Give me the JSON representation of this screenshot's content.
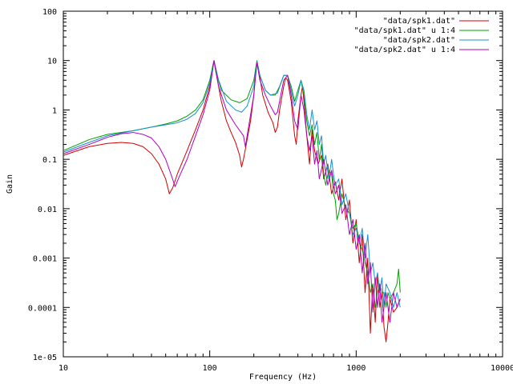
{
  "chart_data": {
    "type": "line",
    "title": "",
    "xlabel": "Frequency (Hz)",
    "ylabel": "Gain",
    "xscale": "log",
    "yscale": "log",
    "xlim": [
      10,
      10000
    ],
    "ylim": [
      1e-05,
      100
    ],
    "x_ticks": [
      {
        "value": 10,
        "label": "10"
      },
      {
        "value": 100,
        "label": "100"
      },
      {
        "value": 1000,
        "label": "1000"
      },
      {
        "value": 10000,
        "label": "10000"
      }
    ],
    "y_ticks": [
      {
        "value": 100,
        "label": "100"
      },
      {
        "value": 10,
        "label": "10"
      },
      {
        "value": 1,
        "label": "1"
      },
      {
        "value": 0.1,
        "label": "0.1"
      },
      {
        "value": 0.01,
        "label": "0.01"
      },
      {
        "value": 0.001,
        "label": "0.001"
      },
      {
        "value": 0.0001,
        "label": "0.0001"
      },
      {
        "value": 1e-05,
        "label": "1e-05"
      }
    ],
    "grid": false,
    "legend_position": "top-right",
    "series": [
      {
        "name": "\"data/spk1.dat\"",
        "color": "#d00000",
        "points": [
          [
            10,
            0.12
          ],
          [
            15,
            0.18
          ],
          [
            20,
            0.21
          ],
          [
            25,
            0.22
          ],
          [
            30,
            0.21
          ],
          [
            35,
            0.18
          ],
          [
            40,
            0.13
          ],
          [
            45,
            0.08
          ],
          [
            50,
            0.04
          ],
          [
            53,
            0.02
          ],
          [
            56,
            0.027
          ],
          [
            60,
            0.05
          ],
          [
            70,
            0.15
          ],
          [
            80,
            0.4
          ],
          [
            90,
            1.0
          ],
          [
            100,
            3.0
          ],
          [
            105,
            8.0
          ],
          [
            107,
            10.0
          ],
          [
            110,
            6.0
          ],
          [
            120,
            1.5
          ],
          [
            130,
            0.6
          ],
          [
            140,
            0.35
          ],
          [
            150,
            0.22
          ],
          [
            160,
            0.12
          ],
          [
            165,
            0.07
          ],
          [
            170,
            0.1
          ],
          [
            180,
            0.25
          ],
          [
            190,
            0.6
          ],
          [
            200,
            2.0
          ],
          [
            205,
            5.0
          ],
          [
            210,
            9.0
          ],
          [
            215,
            7.0
          ],
          [
            230,
            2.0
          ],
          [
            250,
            0.9
          ],
          [
            270,
            0.55
          ],
          [
            280,
            0.35
          ],
          [
            290,
            0.45
          ],
          [
            300,
            1.0
          ],
          [
            320,
            3.0
          ],
          [
            330,
            4.5
          ],
          [
            340,
            4.0
          ],
          [
            360,
            1.5
          ],
          [
            380,
            0.3
          ],
          [
            390,
            0.2
          ],
          [
            400,
            0.6
          ],
          [
            420,
            2.0
          ],
          [
            430,
            3.0
          ],
          [
            445,
            1.0
          ],
          [
            460,
            0.3
          ],
          [
            480,
            0.08
          ],
          [
            500,
            0.4
          ],
          [
            520,
            0.15
          ],
          [
            550,
            0.08
          ],
          [
            580,
            0.12
          ],
          [
            600,
            0.04
          ],
          [
            640,
            0.08
          ],
          [
            680,
            0.02
          ],
          [
            720,
            0.035
          ],
          [
            760,
            0.015
          ],
          [
            800,
            0.04
          ],
          [
            850,
            0.006
          ],
          [
            900,
            0.015
          ],
          [
            950,
            0.002
          ],
          [
            1000,
            0.006
          ],
          [
            1050,
            0.0008
          ],
          [
            1100,
            0.003
          ],
          [
            1150,
            0.0002
          ],
          [
            1200,
            0.001
          ],
          [
            1250,
            3e-05
          ],
          [
            1300,
            0.0003
          ],
          [
            1350,
            5e-05
          ],
          [
            1400,
            0.0005
          ],
          [
            1450,
            0.0001
          ],
          [
            1500,
            0.0002
          ],
          [
            1550,
            4e-05
          ],
          [
            1600,
            2e-05
          ],
          [
            1650,
            5e-05
          ],
          [
            1700,
            0.00015
          ],
          [
            1800,
            8e-05
          ],
          [
            1900,
            0.0001
          ],
          [
            2000,
            0.00015
          ]
        ]
      },
      {
        "name": "\"data/spk1.dat\" u 1:4",
        "color": "#00a000",
        "points": [
          [
            10,
            0.15
          ],
          [
            15,
            0.25
          ],
          [
            20,
            0.32
          ],
          [
            30,
            0.38
          ],
          [
            40,
            0.45
          ],
          [
            50,
            0.52
          ],
          [
            60,
            0.6
          ],
          [
            70,
            0.75
          ],
          [
            80,
            1.0
          ],
          [
            90,
            1.6
          ],
          [
            100,
            4.0
          ],
          [
            105,
            8.0
          ],
          [
            107,
            10.0
          ],
          [
            110,
            6.0
          ],
          [
            120,
            2.5
          ],
          [
            140,
            1.6
          ],
          [
            160,
            1.4
          ],
          [
            180,
            1.7
          ],
          [
            200,
            4.0
          ],
          [
            210,
            10.0
          ],
          [
            220,
            5.0
          ],
          [
            240,
            2.5
          ],
          [
            260,
            2.0
          ],
          [
            280,
            2.0
          ],
          [
            300,
            3.0
          ],
          [
            320,
            5.0
          ],
          [
            340,
            5.0
          ],
          [
            360,
            3.0
          ],
          [
            380,
            1.5
          ],
          [
            400,
            2.5
          ],
          [
            420,
            4.0
          ],
          [
            440,
            2.0
          ],
          [
            460,
            0.6
          ],
          [
            480,
            0.3
          ],
          [
            500,
            0.5
          ],
          [
            520,
            0.2
          ],
          [
            540,
            0.35
          ],
          [
            560,
            0.1
          ],
          [
            580,
            0.2
          ],
          [
            600,
            0.05
          ],
          [
            620,
            0.03
          ],
          [
            650,
            0.06
          ],
          [
            680,
            0.05
          ],
          [
            700,
            0.02
          ],
          [
            720,
            0.015
          ],
          [
            740,
            0.006
          ],
          [
            760,
            0.008
          ],
          [
            800,
            0.02
          ],
          [
            850,
            0.01
          ],
          [
            900,
            0.008
          ],
          [
            950,
            0.004
          ],
          [
            1000,
            0.005
          ],
          [
            1050,
            0.002
          ],
          [
            1100,
            0.0015
          ],
          [
            1150,
            0.0008
          ],
          [
            1200,
            0.0005
          ],
          [
            1250,
            0.0002
          ],
          [
            1300,
            0.0003
          ],
          [
            1350,
            0.0001
          ],
          [
            1400,
            0.0002
          ],
          [
            1450,
            0.0003
          ],
          [
            1500,
            0.0002
          ],
          [
            1550,
            0.0002
          ],
          [
            1600,
            0.0001
          ],
          [
            1650,
            0.0002
          ],
          [
            1700,
            0.00015
          ],
          [
            1800,
            0.0002
          ],
          [
            1900,
            0.0003
          ],
          [
            1950,
            0.0006
          ],
          [
            2000,
            0.0002
          ]
        ]
      },
      {
        "name": "\"data/spk2.dat\"",
        "color": "#1890d0",
        "points": [
          [
            10,
            0.14
          ],
          [
            15,
            0.22
          ],
          [
            20,
            0.3
          ],
          [
            30,
            0.38
          ],
          [
            40,
            0.45
          ],
          [
            50,
            0.5
          ],
          [
            60,
            0.55
          ],
          [
            70,
            0.65
          ],
          [
            80,
            0.85
          ],
          [
            90,
            1.4
          ],
          [
            100,
            3.5
          ],
          [
            107,
            10.0
          ],
          [
            115,
            4.0
          ],
          [
            130,
            1.5
          ],
          [
            150,
            1.0
          ],
          [
            165,
            0.9
          ],
          [
            180,
            1.2
          ],
          [
            200,
            3.0
          ],
          [
            210,
            9.5
          ],
          [
            220,
            5.0
          ],
          [
            240,
            2.5
          ],
          [
            260,
            2.0
          ],
          [
            290,
            2.2
          ],
          [
            320,
            5.0
          ],
          [
            340,
            5.0
          ],
          [
            360,
            2.5
          ],
          [
            380,
            1.2
          ],
          [
            400,
            2.0
          ],
          [
            420,
            4.0
          ],
          [
            440,
            2.5
          ],
          [
            460,
            0.8
          ],
          [
            480,
            0.4
          ],
          [
            500,
            1.0
          ],
          [
            520,
            0.4
          ],
          [
            540,
            0.6
          ],
          [
            560,
            0.2
          ],
          [
            580,
            0.3
          ],
          [
            600,
            0.08
          ],
          [
            620,
            0.12
          ],
          [
            650,
            0.04
          ],
          [
            680,
            0.1
          ],
          [
            700,
            0.05
          ],
          [
            720,
            0.03
          ],
          [
            760,
            0.04
          ],
          [
            800,
            0.012
          ],
          [
            850,
            0.02
          ],
          [
            900,
            0.008
          ],
          [
            950,
            0.003
          ],
          [
            1000,
            0.004
          ],
          [
            1050,
            0.002
          ],
          [
            1100,
            0.004
          ],
          [
            1150,
            0.001
          ],
          [
            1200,
            0.003
          ],
          [
            1250,
            0.0005
          ],
          [
            1300,
            0.0008
          ],
          [
            1350,
            0.0003
          ],
          [
            1400,
            0.0005
          ],
          [
            1450,
            0.0002
          ],
          [
            1500,
            0.0004
          ],
          [
            1550,
            0.0001
          ],
          [
            1600,
            0.0003
          ],
          [
            1700,
            0.0002
          ],
          [
            1800,
            0.0001
          ],
          [
            1900,
            0.0002
          ],
          [
            2000,
            0.0001
          ]
        ]
      },
      {
        "name": "\"data/spk2.dat\" u 1:4",
        "color": "#b000c0",
        "points": [
          [
            10,
            0.13
          ],
          [
            15,
            0.2
          ],
          [
            20,
            0.28
          ],
          [
            25,
            0.33
          ],
          [
            30,
            0.35
          ],
          [
            35,
            0.32
          ],
          [
            40,
            0.27
          ],
          [
            45,
            0.18
          ],
          [
            50,
            0.1
          ],
          [
            55,
            0.045
          ],
          [
            58,
            0.028
          ],
          [
            62,
            0.045
          ],
          [
            70,
            0.1
          ],
          [
            80,
            0.3
          ],
          [
            90,
            0.8
          ],
          [
            100,
            2.5
          ],
          [
            107,
            10.0
          ],
          [
            115,
            3.0
          ],
          [
            130,
            1.0
          ],
          [
            150,
            0.5
          ],
          [
            170,
            0.3
          ],
          [
            175,
            0.18
          ],
          [
            180,
            0.3
          ],
          [
            200,
            2.0
          ],
          [
            210,
            9.0
          ],
          [
            220,
            4.0
          ],
          [
            240,
            2.0
          ],
          [
            260,
            1.2
          ],
          [
            280,
            0.8
          ],
          [
            290,
            0.9
          ],
          [
            320,
            4.0
          ],
          [
            340,
            5.0
          ],
          [
            360,
            2.0
          ],
          [
            380,
            0.6
          ],
          [
            400,
            0.4
          ],
          [
            420,
            2.0
          ],
          [
            440,
            1.0
          ],
          [
            460,
            0.3
          ],
          [
            480,
            0.15
          ],
          [
            500,
            0.3
          ],
          [
            520,
            0.08
          ],
          [
            540,
            0.15
          ],
          [
            560,
            0.04
          ],
          [
            600,
            0.1
          ],
          [
            640,
            0.03
          ],
          [
            680,
            0.06
          ],
          [
            720,
            0.02
          ],
          [
            760,
            0.03
          ],
          [
            800,
            0.008
          ],
          [
            850,
            0.012
          ],
          [
            900,
            0.003
          ],
          [
            950,
            0.006
          ],
          [
            1000,
            0.0015
          ],
          [
            1050,
            0.003
          ],
          [
            1100,
            0.0005
          ],
          [
            1150,
            0.002
          ],
          [
            1200,
            0.0003
          ],
          [
            1250,
            0.0008
          ],
          [
            1300,
            8e-05
          ],
          [
            1350,
            0.0004
          ],
          [
            1400,
            0.0001
          ],
          [
            1450,
            0.0003
          ],
          [
            1500,
            5e-05
          ],
          [
            1600,
            0.0002
          ],
          [
            1700,
            5e-05
          ],
          [
            1800,
            0.0002
          ],
          [
            1900,
            0.0001
          ],
          [
            2000,
            0.00015
          ]
        ]
      }
    ]
  }
}
